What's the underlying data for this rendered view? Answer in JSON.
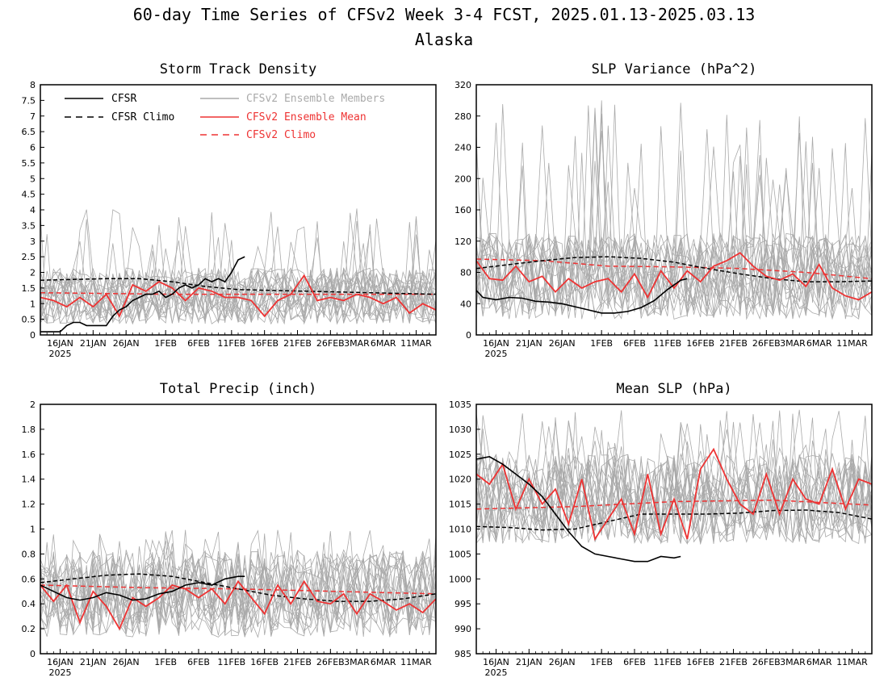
{
  "figure": {
    "title": "60-day Time Series of CFSv2 Week 3-4 FCST, 2025.01.13-2025.03.13",
    "subtitle": "Alaska"
  },
  "legend": {
    "items": [
      {
        "label": "CFSR",
        "color": "#000000",
        "dash": "solid"
      },
      {
        "label": "CFSR Climo",
        "color": "#000000",
        "dash": "dashed"
      },
      {
        "label": "CFSv2 Ensemble Members",
        "color": "#aaaaaa",
        "dash": "solid"
      },
      {
        "label": "CFSv2 Ensemble Mean",
        "color": "#ee3333",
        "dash": "solid"
      },
      {
        "label": "CFSv2 Climo",
        "color": "#ee3333",
        "dash": "dashed"
      }
    ]
  },
  "colors": {
    "members": "#aaaaaa",
    "mean": "#ee3333",
    "obs": "#000000"
  },
  "x_axis": {
    "tick_labels": [
      "16JAN",
      "21JAN",
      "26JAN",
      "1FEB",
      "6FEB",
      "11FEB",
      "16FEB",
      "21FEB",
      "26FEB",
      "3MAR",
      "6MAR",
      "11MAR"
    ],
    "tick_days": [
      3,
      8,
      13,
      19,
      24,
      29,
      34,
      39,
      44,
      48,
      52,
      57
    ],
    "year_label": "2025",
    "range_days": [
      0,
      60
    ]
  },
  "chart_data": [
    {
      "type": "line",
      "title": "Storm Track Density",
      "ylim": [
        0,
        8
      ],
      "yticks": [
        0,
        0.5,
        1,
        1.5,
        2,
        2.5,
        3,
        3.5,
        4,
        4.5,
        5,
        5.5,
        6,
        6.5,
        7,
        7.5,
        8
      ],
      "ytick_labels": [
        "0",
        "0.5",
        "1",
        "1.5",
        "2",
        "2.5",
        "3",
        "3.5",
        "4",
        "4.5",
        "5",
        "5.5",
        "6",
        "6.5",
        "7",
        "7.5",
        "8"
      ],
      "cfsr": {
        "x": [
          0,
          3,
          4,
          5,
          6,
          7,
          8,
          10,
          11,
          12,
          13,
          14,
          15,
          16,
          17,
          18,
          19,
          20,
          21,
          22,
          23,
          24,
          25,
          26,
          27,
          28,
          29,
          30,
          31
        ],
        "y": [
          0.1,
          0.1,
          0.3,
          0.4,
          0.4,
          0.3,
          0.3,
          0.3,
          0.6,
          0.8,
          0.9,
          1.1,
          1.2,
          1.3,
          1.3,
          1.4,
          1.2,
          1.3,
          1.5,
          1.6,
          1.5,
          1.6,
          1.8,
          1.7,
          1.8,
          1.7,
          2.0,
          2.4,
          2.5
        ]
      },
      "cfsr_climo": {
        "x": [
          0,
          10,
          15,
          20,
          25,
          30,
          40,
          50,
          60
        ],
        "y": [
          1.75,
          1.8,
          1.8,
          1.7,
          1.55,
          1.45,
          1.4,
          1.35,
          1.3
        ]
      },
      "cfsv2_climo": {
        "x": [
          0,
          20,
          40,
          60
        ],
        "y": [
          1.35,
          1.3,
          1.3,
          1.3
        ]
      },
      "ensemble_mean": {
        "x": [
          0,
          2,
          4,
          6,
          8,
          10,
          12,
          14,
          16,
          18,
          20,
          22,
          24,
          26,
          28,
          30,
          32,
          34,
          36,
          38,
          40,
          42,
          44,
          46,
          48,
          50,
          52,
          54,
          56,
          58,
          60
        ],
        "y": [
          1.2,
          1.1,
          0.9,
          1.2,
          0.9,
          1.3,
          0.6,
          1.6,
          1.4,
          1.7,
          1.5,
          1.1,
          1.5,
          1.4,
          1.2,
          1.2,
          1.1,
          0.6,
          1.1,
          1.3,
          1.9,
          1.1,
          1.2,
          1.1,
          1.3,
          1.2,
          1.0,
          1.2,
          0.7,
          1.0,
          0.8
        ]
      },
      "members": {
        "count": 20,
        "mean_level": 1.25,
        "spread": 0.9,
        "max": 4.1
      }
    },
    {
      "type": "line",
      "title": "SLP Variance (hPa^2)",
      "ylim": [
        0,
        320
      ],
      "yticks": [
        0,
        40,
        80,
        120,
        160,
        200,
        240,
        280,
        320
      ],
      "ytick_labels": [
        "0",
        "40",
        "80",
        "120",
        "160",
        "200",
        "240",
        "280",
        "320"
      ],
      "cfsr": {
        "x": [
          0,
          1,
          3,
          5,
          7,
          9,
          11,
          13,
          15,
          17,
          19,
          21,
          23,
          25,
          27,
          29,
          31,
          32
        ],
        "y": [
          57,
          48,
          45,
          48,
          47,
          43,
          42,
          40,
          36,
          32,
          28,
          28,
          30,
          35,
          44,
          58,
          70,
          72
        ]
      },
      "cfsr_climo": {
        "x": [
          0,
          5,
          10,
          15,
          20,
          25,
          30,
          35,
          40,
          45,
          50,
          55,
          60
        ],
        "y": [
          85,
          90,
          95,
          99,
          100,
          98,
          93,
          85,
          78,
          72,
          68,
          68,
          69
        ]
      },
      "cfsv2_climo": {
        "x": [
          0,
          10,
          20,
          30,
          40,
          50,
          60
        ],
        "y": [
          97,
          95,
          88,
          87,
          85,
          80,
          72
        ]
      },
      "ensemble_mean": {
        "x": [
          0,
          2,
          4,
          6,
          8,
          10,
          12,
          14,
          16,
          18,
          20,
          22,
          24,
          26,
          28,
          30,
          32,
          34,
          36,
          38,
          40,
          42,
          44,
          46,
          48,
          50,
          52,
          54,
          56,
          58,
          60
        ],
        "y": [
          95,
          72,
          70,
          88,
          68,
          75,
          55,
          72,
          60,
          68,
          72,
          55,
          78,
          48,
          82,
          60,
          82,
          68,
          88,
          95,
          105,
          88,
          75,
          70,
          78,
          62,
          90,
          60,
          50,
          45,
          55
        ]
      },
      "members": {
        "count": 20,
        "mean_level": 75,
        "spread": 55,
        "max": 300
      }
    },
    {
      "type": "line",
      "title": "Total Precip (inch)",
      "ylim": [
        0,
        2
      ],
      "yticks": [
        0,
        0.2,
        0.4,
        0.6,
        0.8,
        1,
        1.2,
        1.4,
        1.6,
        1.8,
        2
      ],
      "ytick_labels": [
        "0",
        "0.2",
        "0.4",
        "0.6",
        "0.8",
        "1",
        "1.2",
        "1.4",
        "1.6",
        "1.8",
        "2"
      ],
      "cfsr": {
        "x": [
          0,
          2,
          4,
          6,
          8,
          10,
          12,
          14,
          16,
          18,
          20,
          22,
          24,
          26,
          28,
          30,
          31
        ],
        "y": [
          0.55,
          0.5,
          0.45,
          0.43,
          0.45,
          0.49,
          0.47,
          0.43,
          0.44,
          0.48,
          0.5,
          0.55,
          0.57,
          0.55,
          0.6,
          0.62,
          0.62
        ]
      },
      "cfsr_climo": {
        "x": [
          0,
          5,
          10,
          15,
          20,
          25,
          30,
          35,
          40,
          45,
          50,
          55,
          60
        ],
        "y": [
          0.57,
          0.6,
          0.63,
          0.64,
          0.62,
          0.57,
          0.52,
          0.47,
          0.44,
          0.42,
          0.42,
          0.44,
          0.48
        ]
      },
      "cfsv2_climo": {
        "x": [
          0,
          15,
          30,
          45,
          60
        ],
        "y": [
          0.55,
          0.53,
          0.52,
          0.5,
          0.48
        ]
      },
      "ensemble_mean": {
        "x": [
          0,
          2,
          4,
          6,
          8,
          10,
          12,
          14,
          16,
          18,
          20,
          22,
          24,
          26,
          28,
          30,
          32,
          34,
          36,
          38,
          40,
          42,
          44,
          46,
          48,
          50,
          52,
          54,
          56,
          58,
          60
        ],
        "y": [
          0.55,
          0.42,
          0.55,
          0.25,
          0.5,
          0.38,
          0.2,
          0.45,
          0.38,
          0.45,
          0.55,
          0.52,
          0.45,
          0.52,
          0.4,
          0.58,
          0.45,
          0.32,
          0.55,
          0.4,
          0.58,
          0.42,
          0.4,
          0.48,
          0.32,
          0.48,
          0.42,
          0.35,
          0.4,
          0.33,
          0.44
        ]
      },
      "members": {
        "count": 20,
        "mean_level": 0.48,
        "spread": 0.35,
        "max": 1.0
      }
    },
    {
      "type": "line",
      "title": "Mean SLP (hPa)",
      "ylim": [
        985,
        1035
      ],
      "yticks": [
        985,
        990,
        995,
        1000,
        1005,
        1010,
        1015,
        1020,
        1025,
        1030,
        1035
      ],
      "ytick_labels": [
        "985",
        "990",
        "995",
        "1000",
        "1005",
        "1010",
        "1015",
        "1020",
        "1025",
        "1030",
        "1035"
      ],
      "cfsr": {
        "x": [
          0,
          2,
          4,
          6,
          8,
          10,
          12,
          14,
          16,
          18,
          20,
          22,
          24,
          26,
          28,
          30,
          31
        ],
        "y": [
          1024,
          1024.5,
          1023,
          1021,
          1019,
          1016.5,
          1013,
          1009.5,
          1006.5,
          1005,
          1004.5,
          1004,
          1003.5,
          1003.5,
          1004.5,
          1004.2,
          1004.5
        ]
      },
      "cfsr_climo": {
        "x": [
          0,
          5,
          10,
          15,
          20,
          25,
          30,
          35,
          40,
          45,
          50,
          55,
          60
        ],
        "y": [
          1010.5,
          1010.3,
          1009.8,
          1010,
          1011.5,
          1013,
          1013,
          1013,
          1013.2,
          1013.7,
          1013.8,
          1013.3,
          1012
        ]
      },
      "cfsv2_climo": {
        "x": [
          0,
          15,
          30,
          45,
          60
        ],
        "y": [
          1014,
          1014.5,
          1015.5,
          1015.8,
          1014.8
        ]
      },
      "ensemble_mean": {
        "x": [
          0,
          2,
          4,
          6,
          8,
          10,
          12,
          14,
          16,
          18,
          20,
          22,
          24,
          26,
          28,
          30,
          32,
          34,
          36,
          38,
          40,
          42,
          44,
          46,
          48,
          50,
          52,
          54,
          56,
          58,
          60
        ],
        "y": [
          1021,
          1019,
          1023,
          1014,
          1020,
          1015,
          1018,
          1011,
          1020,
          1008,
          1012,
          1016,
          1009,
          1021,
          1009,
          1016,
          1008,
          1022,
          1026,
          1020,
          1015,
          1013,
          1021,
          1013,
          1020,
          1016,
          1015,
          1022,
          1014,
          1020,
          1019
        ]
      },
      "members": {
        "count": 20,
        "mean_level": 1016,
        "spread": 9,
        "max": 1034
      }
    }
  ]
}
